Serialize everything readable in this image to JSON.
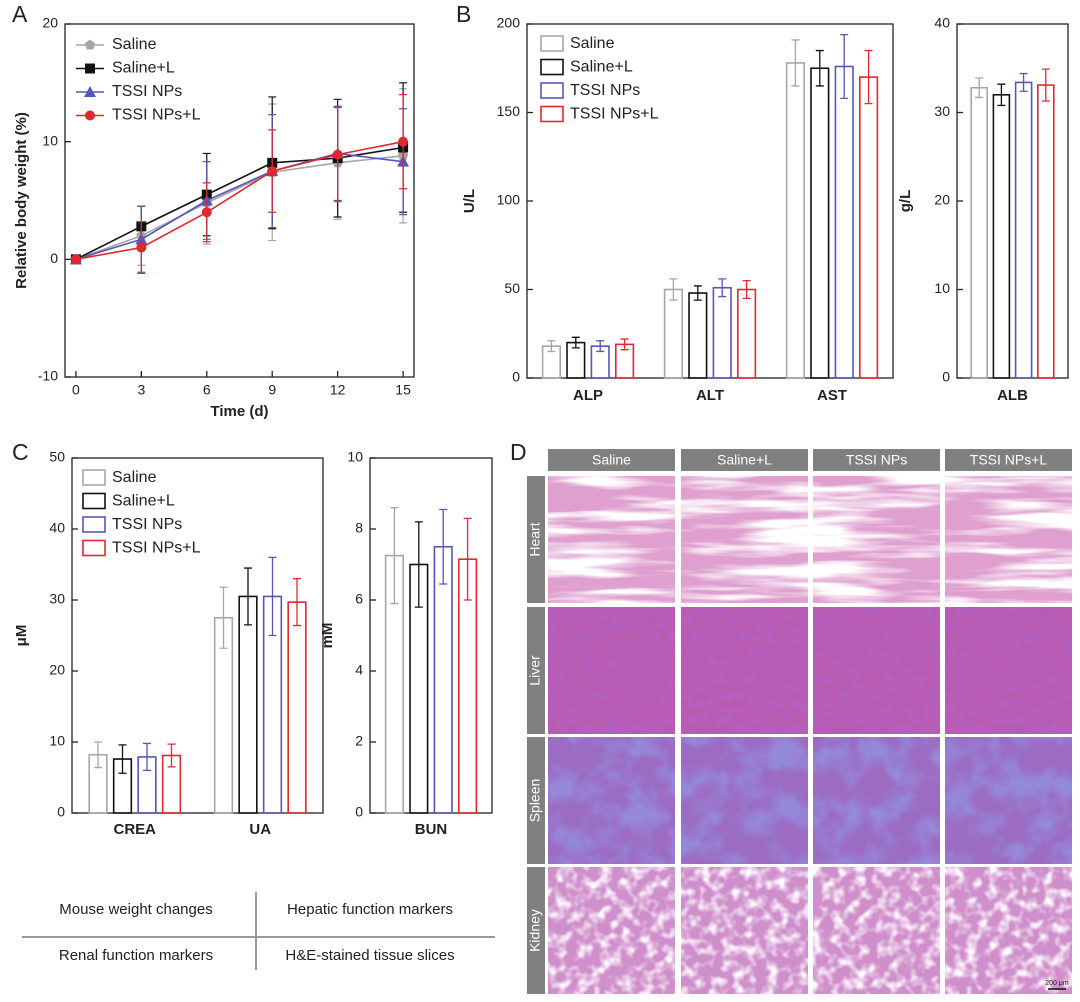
{
  "chart_data": [
    {
      "type": "line",
      "panel": "A",
      "xlabel": "Time (d)",
      "ylabel": "Relative body weight (%)",
      "x": [
        0,
        3,
        6,
        9,
        12,
        15
      ],
      "xlim": [
        -0.5,
        15.5
      ],
      "xticks": [
        0,
        3,
        6,
        9,
        12,
        15
      ],
      "ylim": [
        -10,
        20
      ],
      "yticks": [
        -10,
        0,
        10,
        20
      ],
      "legend": "upper left",
      "series": [
        {
          "name": "Saline",
          "color": "#a6a6a6",
          "marker": "pentagon",
          "values": [
            0,
            2,
            4.8,
            7.4,
            8.2,
            8.8
          ],
          "errors": [
            0,
            2.5,
            3.5,
            5.8,
            4.8,
            5.7
          ]
        },
        {
          "name": "Saline+L",
          "color": "#111111",
          "marker": "square",
          "values": [
            0,
            2.8,
            5.5,
            8.2,
            8.6,
            9.5
          ],
          "errors": [
            0,
            1.7,
            3.5,
            5.6,
            5,
            5.5
          ]
        },
        {
          "name": "TSSI NPs",
          "color": "#5656b8",
          "marker": "triangle",
          "values": [
            0,
            1.7,
            5,
            7.5,
            9,
            8.3
          ],
          "errors": [
            0,
            2.8,
            3.3,
            4.8,
            4,
            4.5
          ]
        },
        {
          "name": "TSSI NPs+L",
          "color": "#e0282e",
          "marker": "circle",
          "values": [
            0,
            1,
            4,
            7.5,
            8.9,
            10
          ],
          "errors": [
            0,
            2.2,
            2.5,
            3.5,
            4,
            4
          ]
        }
      ]
    },
    {
      "type": "bar",
      "panel": "B",
      "ylabel": "U/L",
      "categories": [
        "ALP",
        "ALT",
        "AST"
      ],
      "ylim": [
        0,
        200
      ],
      "yticks": [
        0,
        50,
        100,
        150,
        200
      ],
      "legend": "upper left",
      "series": [
        {
          "name": "Saline",
          "color": "#a6a6a6",
          "values": [
            18,
            50,
            178
          ],
          "errors": [
            3,
            6,
            13
          ]
        },
        {
          "name": "Saline+L",
          "color": "#111111",
          "values": [
            20,
            48,
            175
          ],
          "errors": [
            3,
            4,
            10
          ]
        },
        {
          "name": "TSSI NPs",
          "color": "#5656b8",
          "values": [
            18,
            51,
            176
          ],
          "errors": [
            3,
            5,
            18
          ]
        },
        {
          "name": "TSSI NPs+L",
          "color": "#e0282e",
          "values": [
            19,
            50,
            170
          ],
          "errors": [
            3,
            5,
            15
          ]
        }
      ]
    },
    {
      "type": "bar",
      "ylabel": "g/L",
      "categories": [
        "ALB"
      ],
      "ylim": [
        0,
        40
      ],
      "yticks": [
        0,
        10,
        20,
        30,
        40
      ],
      "series": [
        {
          "color": "#a6a6a6",
          "values": [
            32.8
          ],
          "errors": [
            1.1
          ]
        },
        {
          "color": "#111111",
          "values": [
            32
          ],
          "errors": [
            1.2
          ]
        },
        {
          "color": "#5656b8",
          "values": [
            33.4
          ],
          "errors": [
            1.0
          ]
        },
        {
          "color": "#e0282e",
          "values": [
            33.1
          ],
          "errors": [
            1.8
          ]
        }
      ]
    },
    {
      "type": "bar",
      "panel": "C",
      "ylabel": "μM",
      "categories": [
        "CREA",
        "UA"
      ],
      "ylim": [
        0,
        50
      ],
      "yticks": [
        0,
        10,
        20,
        30,
        40,
        50
      ],
      "legend": "upper left",
      "series": [
        {
          "name": "Saline",
          "color": "#a6a6a6",
          "values": [
            8.2,
            27.5
          ],
          "errors": [
            1.8,
            4.3
          ]
        },
        {
          "name": "Saline+L",
          "color": "#111111",
          "values": [
            7.6,
            30.5
          ],
          "errors": [
            2,
            4
          ]
        },
        {
          "name": "TSSI NPs",
          "color": "#5656b8",
          "values": [
            7.9,
            30.5
          ],
          "errors": [
            1.9,
            5.5
          ]
        },
        {
          "name": "TSSI NPs+L",
          "color": "#e0282e",
          "values": [
            8.1,
            29.7
          ],
          "errors": [
            1.6,
            3.3
          ]
        }
      ]
    },
    {
      "type": "bar",
      "ylabel": "mM",
      "categories": [
        "BUN"
      ],
      "ylim": [
        0,
        10
      ],
      "yticks": [
        0,
        2,
        4,
        6,
        8,
        10
      ],
      "series": [
        {
          "color": "#a6a6a6",
          "values": [
            7.25
          ],
          "errors": [
            1.35
          ]
        },
        {
          "color": "#111111",
          "values": [
            7.0
          ],
          "errors": [
            1.2
          ]
        },
        {
          "color": "#5656b8",
          "values": [
            7.5
          ],
          "errors": [
            1.05
          ]
        },
        {
          "color": "#e0282e",
          "values": [
            7.15
          ],
          "errors": [
            1.15
          ]
        }
      ]
    }
  ],
  "table": {
    "rows": [
      [
        "Mouse weight changes",
        "Hepatic function markers"
      ],
      [
        "Renal function markers",
        "H&E-stained tissue slices"
      ]
    ]
  },
  "histology": {
    "panel": "D",
    "columns": [
      "Saline",
      "Saline+L",
      "TSSI NPs",
      "TSSI NPs+L"
    ],
    "rows": [
      "Heart",
      "Liver",
      "Spleen",
      "Kidney"
    ],
    "scale_bar": "200 μm"
  }
}
